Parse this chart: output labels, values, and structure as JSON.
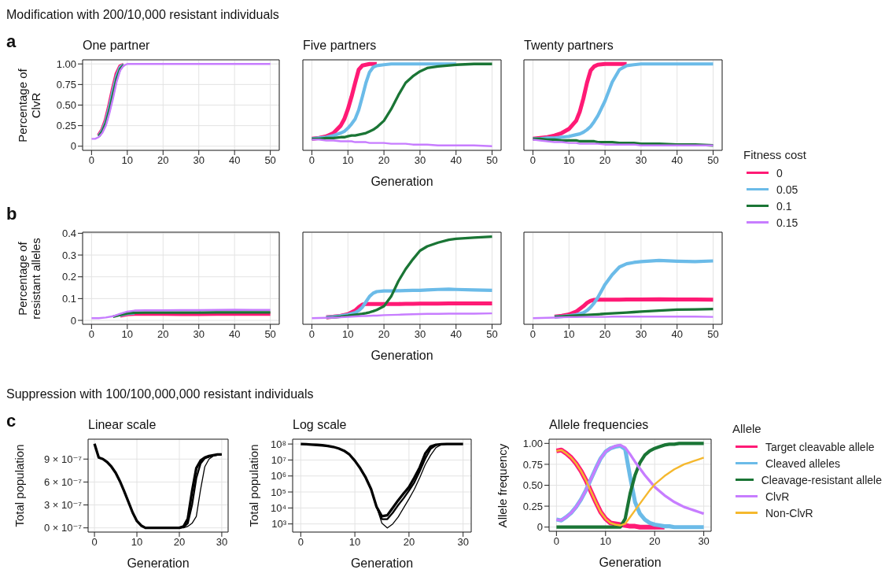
{
  "chart_data": [
    {
      "type": "line",
      "title": "One partner",
      "ylabel": "Percentage of ClvR",
      "annotations": [
        "Modification with 200/10,000 resistant individuals",
        "a"
      ],
      "x": [
        0,
        1,
        2,
        3,
        4,
        5,
        6,
        7,
        8,
        9,
        10,
        12,
        15,
        20,
        30,
        40,
        50
      ],
      "xlim": [
        -2.5,
        52.5
      ],
      "xticks": [
        0,
        10,
        20,
        30,
        40,
        50
      ],
      "ylim": [
        -0.05,
        1.05
      ],
      "yticks": [
        0,
        0.25,
        {
          "value": 0.5,
          "label": "0.50"
        },
        0.75,
        {
          "value": 1,
          "label": "1.00"
        }
      ],
      "grid": true,
      "series": [
        {
          "color": "#ff1a75",
          "values": [
            null,
            null,
            0.13,
            0.2,
            0.32,
            0.5,
            0.7,
            0.88,
            0.97,
            0.99,
            null,
            null,
            null,
            null,
            null,
            null,
            null
          ]
        },
        {
          "color": "#6bbbe8",
          "values": [
            null,
            null,
            0.12,
            0.19,
            0.3,
            0.47,
            0.67,
            0.85,
            0.96,
            0.99,
            null,
            null,
            null,
            null,
            null,
            null,
            null
          ]
        },
        {
          "color": "#1a7535",
          "values": [
            null,
            null,
            0.12,
            0.18,
            0.28,
            0.44,
            0.63,
            0.82,
            0.94,
            0.99,
            null,
            null,
            null,
            null,
            null,
            null,
            null
          ]
        },
        {
          "color": "#c77dff",
          "values": [
            0.09,
            0.09,
            0.11,
            0.16,
            0.25,
            0.4,
            0.58,
            0.78,
            0.92,
            0.98,
            1,
            1,
            1,
            1,
            1,
            1,
            1
          ]
        }
      ]
    },
    {
      "type": "line",
      "title": "Five partners",
      "xlabel": "Generation",
      "tick_labels": "x",
      "x": [
        0,
        2,
        4,
        6,
        8,
        9,
        10,
        11,
        12,
        13,
        14,
        15,
        16,
        17,
        18,
        20,
        22,
        24,
        26,
        28,
        30,
        32,
        35,
        40,
        45,
        50
      ],
      "xlim": [
        -2.5,
        52.5
      ],
      "xticks": [
        0,
        10,
        20,
        30,
        40,
        50
      ],
      "ylim": [
        -0.05,
        1.05
      ],
      "yticks": [
        0,
        0.25,
        0.5,
        0.75,
        1
      ],
      "grid": true,
      "series": [
        {
          "color": "#ff1a75",
          "values": [
            0.09,
            0.1,
            0.12,
            0.16,
            0.25,
            0.33,
            0.45,
            0.6,
            0.77,
            0.93,
            0.98,
            0.99,
            1,
            1,
            1,
            null,
            null,
            null,
            null,
            null,
            null,
            null,
            null,
            null,
            null,
            null
          ]
        },
        {
          "color": "#6bbbe8",
          "values": [
            0.09,
            0.1,
            0.11,
            0.13,
            0.16,
            0.18,
            0.22,
            0.27,
            0.33,
            0.44,
            0.6,
            0.77,
            0.9,
            0.96,
            0.98,
            0.99,
            1,
            1,
            1,
            1,
            1,
            1,
            1,
            1,
            null,
            null
          ]
        },
        {
          "color": "#1a7535",
          "values": [
            0.09,
            0.09,
            0.1,
            0.1,
            0.11,
            0.11,
            0.12,
            0.13,
            0.13,
            0.14,
            0.15,
            0.16,
            0.18,
            0.2,
            0.23,
            0.31,
            0.45,
            0.62,
            0.77,
            0.85,
            0.91,
            0.95,
            0.97,
            0.99,
            1,
            1
          ]
        },
        {
          "color": "#c77dff",
          "values": [
            0.08,
            0.08,
            0.07,
            0.07,
            0.06,
            0.06,
            0.06,
            0.06,
            0.05,
            0.05,
            0.05,
            0.05,
            0.04,
            0.04,
            0.04,
            0.04,
            0.03,
            0.03,
            0.03,
            0.02,
            0.02,
            0.02,
            0.01,
            0.01,
            0.01,
            0
          ]
        }
      ]
    },
    {
      "type": "line",
      "title": "Twenty partners",
      "tick_labels": "x",
      "legend": "right",
      "legend_title": "Fitness cost",
      "x": [
        0,
        2,
        4,
        6,
        8,
        10,
        12,
        13,
        14,
        15,
        16,
        17,
        18,
        20,
        22,
        24,
        26,
        28,
        30,
        32,
        35,
        40,
        45,
        50
      ],
      "xlim": [
        -2.5,
        52.5
      ],
      "xticks": [
        0,
        10,
        20,
        30,
        40,
        50
      ],
      "ylim": [
        -0.05,
        1.05
      ],
      "yticks": [
        0,
        0.25,
        0.5,
        0.75,
        1
      ],
      "grid": true,
      "series": [
        {
          "name": "0",
          "color": "#ff1a75",
          "values": [
            0.09,
            0.1,
            0.11,
            0.13,
            0.16,
            0.21,
            0.31,
            0.42,
            0.58,
            0.77,
            0.92,
            0.97,
            0.99,
            1,
            1,
            1,
            1,
            null,
            null,
            null,
            null,
            null,
            null,
            null
          ]
        },
        {
          "name": "0.05",
          "color": "#6bbbe8",
          "values": [
            0.09,
            0.09,
            0.1,
            0.1,
            0.11,
            0.12,
            0.14,
            0.15,
            0.17,
            0.2,
            0.24,
            0.3,
            0.37,
            0.55,
            0.78,
            0.93,
            0.98,
            0.99,
            1,
            1,
            1,
            1,
            1,
            1
          ]
        },
        {
          "name": "0.1",
          "color": "#1a7535",
          "values": [
            0.09,
            0.09,
            0.08,
            0.08,
            0.07,
            0.07,
            0.07,
            0.06,
            0.06,
            0.06,
            0.06,
            0.06,
            0.05,
            0.05,
            0.05,
            0.04,
            0.04,
            0.04,
            0.03,
            0.03,
            0.03,
            0.02,
            0.02,
            0.01
          ]
        },
        {
          "name": "0.15",
          "color": "#c77dff",
          "values": [
            0.08,
            0.07,
            0.06,
            0.05,
            0.05,
            0.04,
            0.04,
            0.03,
            0.03,
            0.03,
            0.03,
            0.03,
            0.03,
            0.02,
            0.02,
            0.02,
            0.02,
            0.02,
            0.01,
            0.01,
            0.01,
            0.01,
            0.01,
            0.01
          ]
        }
      ]
    },
    {
      "type": "line",
      "ylabel": "Percentage of resistant alleles",
      "annotations": [
        "b"
      ],
      "x": [
        0,
        2,
        4,
        6,
        8,
        10,
        12,
        15,
        20,
        25,
        30,
        35,
        40,
        45,
        50
      ],
      "xlim": [
        -2.5,
        52.5
      ],
      "xticks": [
        0,
        10,
        20,
        30,
        40,
        50
      ],
      "ylim": [
        -0.018,
        0.405
      ],
      "yticks": [
        0,
        0.1,
        0.2,
        0.3,
        0.4
      ],
      "grid": true,
      "series": [
        {
          "color": "#ff1a75",
          "values": [
            null,
            null,
            null,
            null,
            0.022,
            0.028,
            0.03,
            0.03,
            0.03,
            0.029,
            0.029,
            0.03,
            0.03,
            0.03,
            0.03
          ]
        },
        {
          "color": "#6bbbe8",
          "values": [
            null,
            null,
            null,
            null,
            0.024,
            0.031,
            0.034,
            null,
            null,
            null,
            null,
            null,
            null,
            null,
            null
          ]
        },
        {
          "color": "#1a7535",
          "values": [
            null,
            null,
            null,
            0.017,
            0.025,
            0.032,
            0.035,
            0.036,
            0.036,
            0.036,
            0.036,
            0.037,
            0.037,
            0.037,
            0.037
          ]
        },
        {
          "color": "#c77dff",
          "values": [
            0.01,
            0.01,
            0.013,
            0.019,
            0.03,
            0.04,
            0.045,
            0.046,
            0.046,
            0.047,
            0.047,
            0.048,
            0.049,
            0.048,
            0.048
          ]
        }
      ]
    },
    {
      "type": "line",
      "xlabel": "Generation",
      "tick_labels": "x",
      "x": [
        0,
        2,
        4,
        6,
        8,
        10,
        12,
        13,
        14,
        15,
        16,
        17,
        18,
        20,
        22,
        24,
        26,
        28,
        30,
        32,
        35,
        38,
        40,
        45,
        50
      ],
      "xlim": [
        -2.5,
        52.5
      ],
      "xticks": [
        0,
        10,
        20,
        30,
        40,
        50
      ],
      "ylim": [
        -0.018,
        0.405
      ],
      "yticks": [
        0,
        0.1,
        0.2,
        0.3,
        0.4
      ],
      "grid": true,
      "series": [
        {
          "color": "#ff1a75",
          "values": [
            null,
            null,
            0.014,
            0.017,
            0.021,
            0.028,
            0.045,
            0.06,
            0.072,
            0.075,
            0.075,
            0.075,
            0.075,
            0.075,
            0.075,
            0.075,
            0.076,
            0.076,
            0.077,
            0.077,
            0.077,
            0.078,
            0.078,
            0.078,
            0.078
          ]
        },
        {
          "color": "#6bbbe8",
          "values": [
            null,
            null,
            0.014,
            0.017,
            0.021,
            0.026,
            0.035,
            0.045,
            0.06,
            0.085,
            0.11,
            0.125,
            0.132,
            0.135,
            0.135,
            0.136,
            0.137,
            0.138,
            0.138,
            0.14,
            0.142,
            0.143,
            0.142,
            0.14,
            0.138
          ]
        },
        {
          "color": "#1a7535",
          "values": [
            null,
            null,
            0.012,
            0.014,
            0.017,
            0.021,
            0.026,
            0.028,
            0.03,
            0.033,
            0.037,
            0.042,
            0.048,
            0.065,
            0.11,
            0.18,
            0.235,
            0.28,
            0.32,
            0.34,
            0.357,
            0.37,
            0.375,
            0.38,
            0.385
          ]
        },
        {
          "color": "#c77dff",
          "values": [
            0.01,
            0.011,
            0.012,
            0.013,
            0.014,
            0.016,
            0.018,
            0.019,
            0.02,
            0.02,
            0.021,
            0.022,
            0.022,
            0.024,
            0.025,
            0.026,
            0.027,
            0.028,
            0.029,
            0.03,
            0.03,
            0.031,
            0.031,
            0.031,
            0.032
          ]
        }
      ]
    },
    {
      "type": "line",
      "tick_labels": "x",
      "x": [
        0,
        2,
        4,
        6,
        8,
        10,
        12,
        14,
        15,
        16,
        17,
        18,
        19,
        20,
        22,
        24,
        26,
        28,
        30,
        35,
        40,
        45,
        50
      ],
      "xlim": [
        -2.5,
        52.5
      ],
      "xticks": [
        0,
        10,
        20,
        30,
        40,
        50
      ],
      "ylim": [
        -0.018,
        0.405
      ],
      "yticks": [
        0,
        0.1,
        0.2,
        0.3,
        0.4
      ],
      "grid": true,
      "series": [
        {
          "color": "#ff1a75",
          "values": [
            null,
            null,
            null,
            0.017,
            0.021,
            0.027,
            0.04,
            0.065,
            0.08,
            0.09,
            0.094,
            0.095,
            0.095,
            0.095,
            0.095,
            0.095,
            0.096,
            0.096,
            0.096,
            0.097,
            0.096,
            0.096,
            0.095
          ]
        },
        {
          "color": "#6bbbe8",
          "values": [
            null,
            null,
            null,
            0.016,
            0.018,
            0.021,
            0.026,
            0.035,
            0.045,
            0.06,
            0.08,
            0.105,
            0.135,
            0.165,
            0.21,
            0.245,
            0.26,
            0.266,
            0.27,
            0.275,
            0.272,
            0.27,
            0.273
          ]
        },
        {
          "color": "#1a7535",
          "values": [
            null,
            null,
            null,
            0.016,
            0.018,
            0.02,
            0.022,
            0.024,
            0.025,
            0.026,
            0.027,
            0.028,
            0.029,
            0.03,
            0.032,
            0.034,
            0.036,
            0.038,
            0.04,
            0.045,
            0.049,
            0.05,
            0.052
          ]
        },
        {
          "color": "#c77dff",
          "values": [
            0.01,
            0.011,
            0.012,
            0.013,
            0.014,
            0.015,
            0.015,
            0.016,
            0.016,
            0.016,
            0.016,
            0.016,
            0.016,
            0.016,
            0.017,
            0.017,
            0.017,
            0.017,
            0.017,
            0.017,
            0.017,
            0.017,
            0.016
          ]
        }
      ]
    },
    {
      "type": "line",
      "title": "Linear scale",
      "xlabel": "Generation",
      "ylabel": "Total population",
      "annotations": [
        "Suppression with 100/100,000,000 resistant individuals",
        "c"
      ],
      "x": [
        0,
        1,
        2,
        3,
        4,
        5,
        6,
        7,
        8,
        9,
        10,
        11,
        12,
        13,
        14,
        15,
        16,
        17,
        18,
        19,
        20,
        21,
        22,
        23,
        24,
        25,
        26,
        27,
        28,
        29,
        30
      ],
      "xlim": [
        -1.5,
        31.5
      ],
      "xticks": [
        0,
        10,
        20,
        30
      ],
      "ylim": [
        -5.5e-08,
        1.16e-06
      ],
      "yticks": [
        {
          "value": 0,
          "label": "0 × 10⁻⁷"
        },
        {
          "value": 3e-07,
          "label": "3 × 10⁻⁷"
        },
        {
          "value": 6e-07,
          "label": "6 × 10⁻⁷"
        },
        {
          "value": 9e-07,
          "label": "9 × 10⁻⁷"
        }
      ],
      "grid": true,
      "series": [
        {
          "color": "#000000",
          "values": [
            1.1e-06,
            9.2e-07,
            9e-07,
            8.6e-07,
            8e-07,
            7.2e-07,
            6.1e-07,
            4.8e-07,
            3.4e-07,
            2e-07,
            9e-08,
            3e-08,
            0,
            0,
            0,
            0,
            0,
            0,
            0,
            0,
            0,
            2e-08,
            1.2e-07,
            4.8e-07,
            7.8e-07,
            8.8e-07,
            9.2e-07,
            9.4e-07,
            9.5e-07,
            9.6e-07,
            9.6e-07
          ]
        },
        {
          "color": "#000000",
          "values": [
            null,
            null,
            null,
            null,
            null,
            null,
            null,
            null,
            null,
            null,
            null,
            null,
            null,
            null,
            null,
            null,
            null,
            null,
            null,
            null,
            0,
            1e-08,
            6e-08,
            3e-07,
            6.5e-07,
            8.4e-07,
            9.1e-07,
            9.3e-07,
            9.5e-07,
            null,
            null
          ]
        },
        {
          "color": "#000000",
          "values": [
            null,
            null,
            null,
            null,
            null,
            null,
            null,
            null,
            null,
            null,
            null,
            null,
            null,
            null,
            null,
            null,
            null,
            null,
            null,
            null,
            0,
            0,
            2e-08,
            6e-08,
            1.5e-07,
            5e-07,
            8e-07,
            9e-07,
            9.4e-07,
            9.5e-07,
            null
          ]
        }
      ]
    },
    {
      "type": "line",
      "title": "Log scale",
      "xlabel": "Generation",
      "ylabel": "Total population",
      "log": "y",
      "x": [
        0,
        1,
        2,
        3,
        4,
        5,
        6,
        7,
        8,
        9,
        10,
        11,
        12,
        13,
        14,
        15,
        16,
        17,
        18,
        19,
        20,
        21,
        22,
        23,
        24,
        25,
        26,
        27,
        28,
        29,
        30
      ],
      "xlim": [
        -1.5,
        31.5
      ],
      "xticks": [
        0,
        10,
        20,
        30
      ],
      "ylim": [
        310,
        200000000.0
      ],
      "yticks": [
        {
          "value": 1000,
          "label": "10³"
        },
        {
          "value": 10000,
          "label": "10⁴"
        },
        {
          "value": 100000,
          "label": "10⁵"
        },
        {
          "value": 1000000,
          "label": "10⁶"
        },
        {
          "value": 10000000,
          "label": "10⁷"
        },
        {
          "value": 100000000,
          "label": "10⁸"
        }
      ],
      "grid": true,
      "series": [
        {
          "color": "#000000",
          "values": [
            100000000.0,
            96000000.0,
            92000000.0,
            88000000.0,
            83000000.0,
            76000000.0,
            66000000.0,
            53000000.0,
            38000000.0,
            22000000.0,
            9000000.0,
            3000000.0,
            800000.0,
            150000.0,
            12000.0,
            3000.0,
            3500.0,
            10000.0,
            30000.0,
            80000.0,
            200000.0,
            800000.0,
            3500000.0,
            25000000.0,
            70000000.0,
            90000000.0,
            98000000.0,
            100000000.0,
            100000000.0,
            100000000.0,
            100000000.0
          ]
        },
        {
          "color": "#000000",
          "values": [
            null,
            null,
            null,
            null,
            null,
            null,
            null,
            null,
            null,
            null,
            null,
            null,
            null,
            null,
            12000.0,
            2000.0,
            2000.0,
            5000.0,
            15000.0,
            40000.0,
            120000.0,
            400000.0,
            2000000.0,
            12000000.0,
            50000000.0,
            85000000.0,
            null,
            null,
            null,
            null,
            null
          ]
        },
        {
          "color": "#000000",
          "values": [
            null,
            null,
            null,
            null,
            null,
            null,
            null,
            null,
            null,
            null,
            null,
            null,
            null,
            null,
            12000.0,
            1100.0,
            560.0,
            1000.0,
            2700.0,
            10000.0,
            37000.0,
            150000.0,
            800000.0,
            5000000.0,
            20000000.0,
            60000000.0,
            90000000.0,
            null,
            null,
            null,
            null
          ]
        }
      ]
    },
    {
      "type": "line",
      "title": "Allele frequencies",
      "xlabel": "Generation",
      "ylabel": "Allele frequency",
      "legend": "right",
      "legend_title": "Allele",
      "x": [
        0,
        1,
        2,
        3,
        4,
        5,
        6,
        7,
        8,
        9,
        10,
        11,
        12,
        13,
        14,
        15,
        16,
        17,
        18,
        19,
        20,
        21,
        22,
        23,
        24,
        25,
        26,
        27,
        28,
        29,
        30
      ],
      "xlim": [
        -1.5,
        31.5
      ],
      "xticks": [
        0,
        10,
        20,
        30
      ],
      "ylim": [
        -0.05,
        1.05
      ],
      "yticks": [
        0,
        0.25,
        {
          "value": 0.5,
          "label": "0.50"
        },
        0.75,
        {
          "value": 1,
          "label": "1.00"
        }
      ],
      "grid": true,
      "series": [
        {
          "name": "Target cleavable allele",
          "color": "#ff1a75",
          "values": [
            0.91,
            0.92,
            0.88,
            0.83,
            0.76,
            0.67,
            0.56,
            0.43,
            0.3,
            0.18,
            0.1,
            0.05,
            0.04,
            0.03,
            0.02,
            0.01,
            0.01,
            0,
            0,
            0,
            0,
            0,
            0,
            null,
            null,
            null,
            null,
            null,
            null,
            null,
            null
          ]
        },
        {
          "name": "Cleaved alleles",
          "color": "#6bbbe8",
          "values": [
            0.09,
            0.08,
            0.12,
            0.17,
            0.24,
            0.33,
            0.44,
            0.57,
            0.7,
            0.82,
            0.9,
            0.94,
            0.96,
            0.97,
            0.93,
            0.6,
            0.3,
            0.16,
            0.09,
            0.05,
            0.03,
            0.02,
            0.01,
            0.01,
            0,
            0,
            0,
            0,
            0,
            0,
            0
          ]
        },
        {
          "name": "Cleavage-resistant allele",
          "color": "#1a7535",
          "values": [
            0,
            0,
            0,
            0,
            0,
            0,
            0,
            0,
            0,
            0,
            0,
            0,
            0,
            0,
            0.1,
            0.4,
            0.62,
            0.77,
            0.86,
            0.91,
            0.94,
            0.96,
            0.98,
            0.99,
            0.99,
            1,
            1,
            1,
            1,
            1,
            1
          ]
        },
        {
          "name": "ClvR",
          "color": "#c77dff",
          "values": [
            0.09,
            0.08,
            0.12,
            0.17,
            0.24,
            0.33,
            0.44,
            0.57,
            0.7,
            0.82,
            0.9,
            0.94,
            0.97,
            0.98,
            0.95,
            0.87,
            0.78,
            0.7,
            0.62,
            0.55,
            0.48,
            0.43,
            0.38,
            0.34,
            0.3,
            0.27,
            0.24,
            0.22,
            0.2,
            0.18,
            0.16
          ]
        },
        {
          "name": "Non-ClvR",
          "color": "#f5b82e",
          "values": [
            0.91,
            0.92,
            0.88,
            0.83,
            0.76,
            0.67,
            0.56,
            0.43,
            0.3,
            0.18,
            0.1,
            0.05,
            0.03,
            0.02,
            0.04,
            0.12,
            0.2,
            0.28,
            0.36,
            0.44,
            0.51,
            0.56,
            0.61,
            0.65,
            0.69,
            0.72,
            0.75,
            0.77,
            0.79,
            0.81,
            0.83
          ]
        }
      ]
    }
  ]
}
